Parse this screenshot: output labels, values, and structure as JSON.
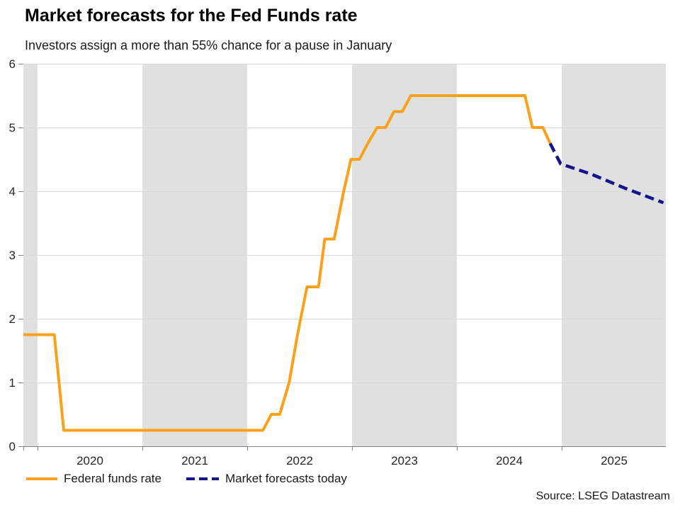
{
  "header": {
    "title": "Market forecasts for the Fed Funds rate",
    "subtitle": "Investors assign a more than 55% chance for a pause in January"
  },
  "source": "Source: LSEG Datastream",
  "legend": [
    {
      "label": "Federal funds rate",
      "style": "solid",
      "color": "#F9A11B"
    },
    {
      "label": "Market forecasts today",
      "style": "dashed",
      "color": "#14148C",
      "dash": [
        12,
        6
      ]
    }
  ],
  "colors": {
    "background": "#FFFFFF",
    "band": "#E0E0E0",
    "gridline": "#D9D9D9",
    "axis": "#808080",
    "tick_text": "#262626",
    "fed_funds": "#F9A11B",
    "forecast": "#14148C"
  },
  "chart_data": {
    "type": "line",
    "title": "Market forecasts for the Fed Funds rate",
    "subtitle": "Investors assign a more than 55% chance for a pause in January",
    "xlabel": "",
    "ylabel": "",
    "ylim": [
      0,
      6
    ],
    "xlim": [
      2019.865,
      2025.993
    ],
    "y_ticks": [
      0,
      1,
      2,
      3,
      4,
      5,
      6
    ],
    "x_ticks": [
      2020,
      2021,
      2022,
      2023,
      2024,
      2025
    ],
    "grid": "horizontal",
    "legend_position": "bottom",
    "shaded_bands": [
      [
        2019.865,
        2020
      ],
      [
        2021,
        2022
      ],
      [
        2023,
        2024
      ],
      [
        2025,
        2025.993
      ]
    ],
    "series": [
      {
        "name": "Federal funds rate",
        "id": "federal-funds-rate-line",
        "color": "#F9A11B",
        "width": 4,
        "dash": null,
        "points": [
          [
            2019.865,
            1.75
          ],
          [
            2020.16,
            1.75
          ],
          [
            2020.25,
            0.25
          ],
          [
            2022.15,
            0.25
          ],
          [
            2022.23,
            0.5
          ],
          [
            2022.31,
            0.5
          ],
          [
            2022.4,
            1.0
          ],
          [
            2022.48,
            1.75
          ],
          [
            2022.57,
            2.5
          ],
          [
            2022.68,
            2.5
          ],
          [
            2022.74,
            3.25
          ],
          [
            2022.83,
            3.25
          ],
          [
            2022.92,
            4.0
          ],
          [
            2022.99,
            4.5
          ],
          [
            2023.07,
            4.5
          ],
          [
            2023.15,
            4.75
          ],
          [
            2023.24,
            5.0
          ],
          [
            2023.32,
            5.0
          ],
          [
            2023.4,
            5.25
          ],
          [
            2023.48,
            5.25
          ],
          [
            2023.56,
            5.5
          ],
          [
            2024.65,
            5.5
          ],
          [
            2024.72,
            5.0
          ],
          [
            2024.82,
            5.0
          ],
          [
            2024.89,
            4.75
          ]
        ]
      },
      {
        "name": "Market forecasts today",
        "id": "market-forecasts-line",
        "color": "#14148C",
        "width": 4.5,
        "dash": [
          13,
          7
        ],
        "points": [
          [
            2024.89,
            4.75
          ],
          [
            2024.99,
            4.43
          ],
          [
            2025.28,
            4.27
          ],
          [
            2025.6,
            4.05
          ],
          [
            2025.97,
            3.82
          ]
        ]
      }
    ]
  }
}
